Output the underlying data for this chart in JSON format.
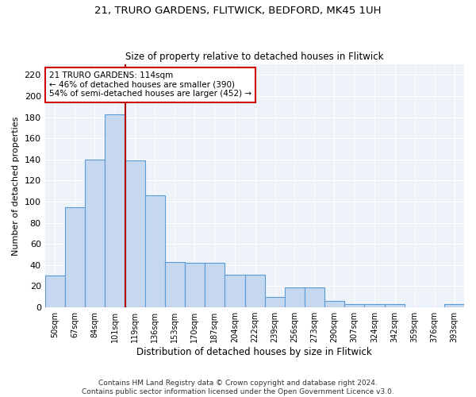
{
  "title_line1": "21, TRURO GARDENS, FLITWICK, BEDFORD, MK45 1UH",
  "title_line2": "Size of property relative to detached houses in Flitwick",
  "xlabel": "Distribution of detached houses by size in Flitwick",
  "ylabel": "Number of detached properties",
  "bar_color": "#c5d8f0",
  "bar_edge_color": "#5b9bd5",
  "background_color": "#eef2f9",
  "annotation_line1": "21 TRURO GARDENS: 114sqm",
  "annotation_line2": "← 46% of detached houses are smaller (390)",
  "annotation_line3": "54% of semi-detached houses are larger (452) →",
  "vline_color": "#aa0000",
  "categories": [
    "50sqm",
    "67sqm",
    "84sqm",
    "101sqm",
    "119sqm",
    "136sqm",
    "153sqm",
    "170sqm",
    "187sqm",
    "204sqm",
    "222sqm",
    "239sqm",
    "256sqm",
    "273sqm",
    "290sqm",
    "307sqm",
    "324sqm",
    "342sqm",
    "359sqm",
    "376sqm",
    "393sqm"
  ],
  "bin_edges": [
    50,
    67,
    84,
    101,
    119,
    136,
    153,
    170,
    187,
    204,
    222,
    239,
    256,
    273,
    290,
    307,
    324,
    342,
    359,
    376,
    393,
    410
  ],
  "values": [
    30,
    95,
    140,
    183,
    139,
    106,
    43,
    42,
    42,
    31,
    31,
    10,
    19,
    19,
    6,
    3,
    3,
    3,
    0,
    0,
    3
  ],
  "ylim": [
    0,
    230
  ],
  "yticks": [
    0,
    20,
    40,
    60,
    80,
    100,
    120,
    140,
    160,
    180,
    200,
    220
  ],
  "footnote_line1": "Contains HM Land Registry data © Crown copyright and database right 2024.",
  "footnote_line2": "Contains public sector information licensed under the Open Government Licence v3.0.",
  "vline_x": 119
}
